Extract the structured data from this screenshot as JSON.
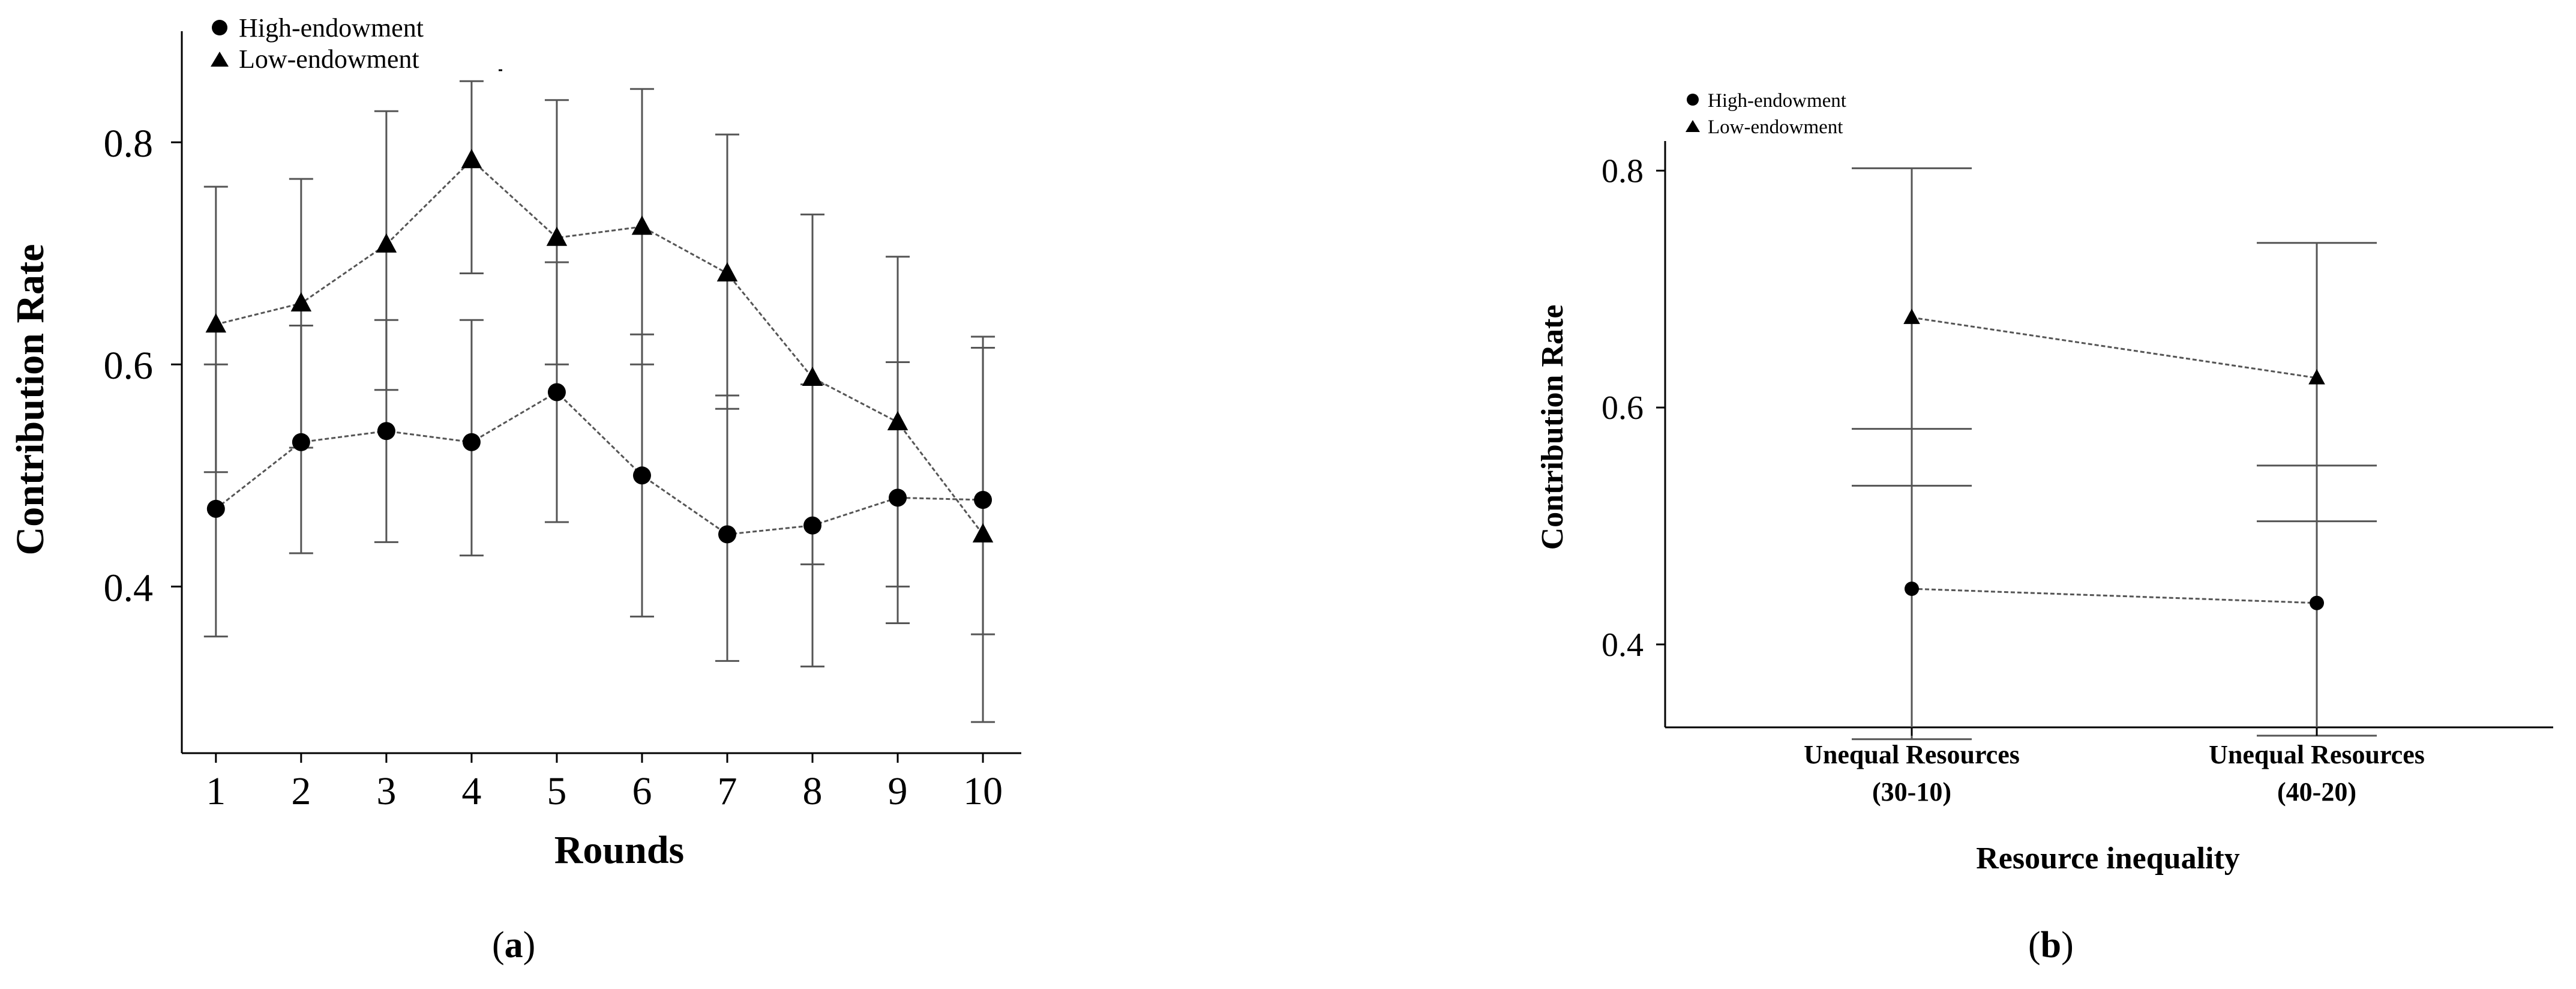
{
  "chart_data": [
    {
      "type": "line",
      "panel_label": "a",
      "xlabel": "Rounds",
      "ylabel": "Contribution  Rate",
      "x": [
        1,
        2,
        3,
        4,
        5,
        6,
        7,
        8,
        9,
        10
      ],
      "x_tick_labels": [
        "1",
        "2",
        "3",
        "4",
        "5",
        "6",
        "7",
        "8",
        "9",
        "10"
      ],
      "y_ticks": [
        0.4,
        0.6,
        0.8
      ],
      "y_tick_labels": [
        "0.4",
        "0.6",
        "0.8"
      ],
      "ylim": [
        0.25,
        0.9
      ],
      "xlim": [
        0.6,
        10.45
      ],
      "grid": false,
      "legend_position": "top-left",
      "series": [
        {
          "name": "High-endowment",
          "marker": "circle",
          "values": [
            0.47,
            0.53,
            0.54,
            0.53,
            0.575,
            0.5,
            0.447,
            0.455,
            0.48,
            0.478
          ],
          "err_low": [
            0.355,
            0.43,
            0.44,
            0.428,
            0.458,
            0.373,
            0.333,
            0.328,
            0.367,
            0.357
          ],
          "err_high": [
            0.6,
            0.635,
            0.64,
            0.64,
            0.692,
            0.627,
            0.572,
            0.582,
            0.602,
            0.625
          ]
        },
        {
          "name": "Low-endowment",
          "marker": "triangle",
          "values": [
            0.636,
            0.655,
            0.708,
            0.784,
            0.714,
            0.724,
            0.682,
            0.588,
            0.548,
            0.447
          ],
          "err_low": [
            0.503,
            0.525,
            0.577,
            0.682,
            0.6,
            0.6,
            0.56,
            0.42,
            0.4,
            0.278
          ],
          "err_high": [
            0.76,
            0.767,
            0.828,
            0.855,
            0.838,
            0.848,
            0.807,
            0.735,
            0.697,
            0.615
          ]
        }
      ]
    },
    {
      "type": "line",
      "panel_label": "b",
      "xlabel": "Resource inequality",
      "ylabel": "Contribution  Rate",
      "categories": [
        [
          "Unequal Resources",
          "(30-10)"
        ],
        [
          "Unequal Resources",
          "(40-20)"
        ]
      ],
      "y_ticks": [
        0.4,
        0.6,
        0.8
      ],
      "y_tick_labels": [
        "0.4",
        "0.6",
        "0.8"
      ],
      "ylim": [
        0.33,
        0.825
      ],
      "grid": false,
      "legend_position": "top-left",
      "series": [
        {
          "name": "High-endowment",
          "marker": "circle",
          "values": [
            0.447,
            0.435
          ],
          "err_low": [
            0.32,
            0.323
          ],
          "err_high": [
            0.582,
            0.551
          ]
        },
        {
          "name": "Low-endowment",
          "marker": "triangle",
          "values": [
            0.676,
            0.625
          ],
          "err_low": [
            0.534,
            0.504
          ],
          "err_high": [
            0.802,
            0.739
          ]
        }
      ]
    }
  ],
  "colors": {
    "ink": "#000000",
    "connector": "#555555",
    "errorbar": "#555555"
  }
}
